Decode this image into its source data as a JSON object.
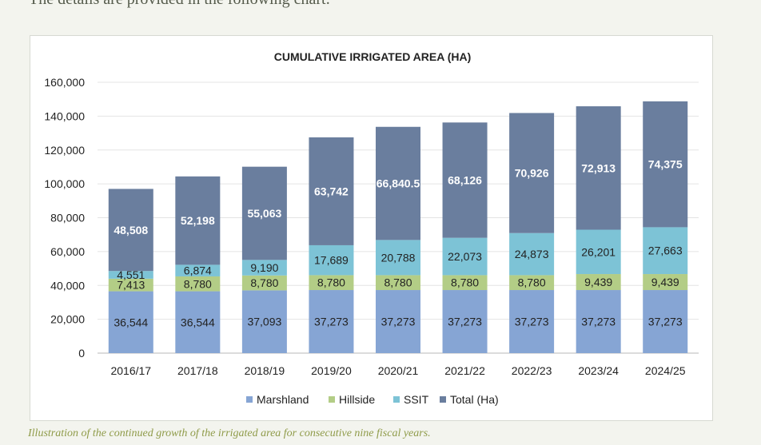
{
  "intro_text": "The details are provided in the following chart:",
  "caption": "Illustration of the continued growth of the irrigated area for consecutive nine fiscal years.",
  "colors": {
    "Marshland": "#86a5d4",
    "Hillside": "#b3cd86",
    "SSIT": "#7dc3d6",
    "Total (Ha)": "#6a7e9e"
  },
  "chart_data": {
    "type": "bar",
    "stacked": true,
    "title": "CUMULATIVE IRRIGATED AREA (HA)",
    "categories": [
      "2016/17",
      "2017/18",
      "2018/19",
      "2019/20",
      "2020/21",
      "2021/22",
      "2022/23",
      "2023/24",
      "2024/25"
    ],
    "series": [
      {
        "name": "Marshland",
        "values": [
          36544,
          36544,
          37093,
          37273,
          37273,
          37273,
          37273,
          37273,
          37273
        ],
        "labels": [
          "36,544",
          "36,544",
          "37,093",
          "37,273",
          "37,273",
          "37,273",
          "37,273",
          "37,273",
          "37,273"
        ]
      },
      {
        "name": "Hillside",
        "values": [
          7413,
          8780,
          8780,
          8780,
          8780,
          8780,
          8780,
          9439,
          9439
        ],
        "labels": [
          "7,413",
          "8,780",
          "8,780",
          "8,780",
          "8,780",
          "8,780",
          "8,780",
          "9,439",
          "9,439"
        ]
      },
      {
        "name": "SSIT",
        "values": [
          4551,
          6874,
          9190,
          17689,
          20788,
          22073,
          24873,
          26201,
          27663
        ],
        "labels": [
          "4,551",
          "6,874",
          "9,190",
          "17,689",
          "20,788",
          "22,073",
          "24,873",
          "26,201",
          "27,663"
        ]
      },
      {
        "name": "Total (Ha)",
        "values": [
          48508,
          52198,
          55063,
          63742,
          66840.5,
          68126,
          70926,
          72913,
          74375
        ],
        "labels": [
          "48,508",
          "52,198",
          "55,063",
          "63,742",
          "66,840.5",
          "68,126",
          "70,926",
          "72,913",
          "74,375"
        ]
      }
    ],
    "yticks": [
      "0",
      "20,000",
      "40,000",
      "60,000",
      "80,000",
      "100,000",
      "120,000",
      "140,000",
      "160,000"
    ],
    "ylim": [
      0,
      160000
    ],
    "grid": true,
    "legend": "bottom"
  }
}
